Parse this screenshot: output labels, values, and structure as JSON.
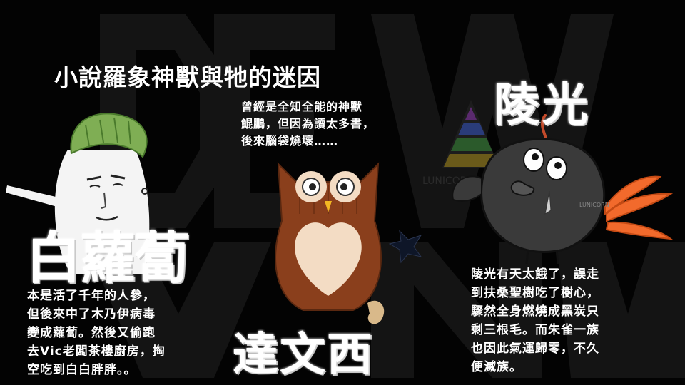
{
  "title": "小說羅象神獸與牠的迷因",
  "characters": {
    "radish": {
      "name": "白蘿蔔",
      "desc_lines": [
        "本是活了千年的人參，",
        "但後來中了木乃伊病毒",
        "變成蘿蔔。然後又偷跑",
        "去Vic老闆茶樓廚房，掏",
        "空吃到白白胖胖。。"
      ]
    },
    "owl": {
      "name": "達文西",
      "desc_lines": [
        "曾經是全知全能的神獸",
        "鯤鵬，但因為讀太多書，",
        "後來腦袋燒壞……"
      ]
    },
    "crow": {
      "name": "陵光",
      "desc_lines": [
        "陵光有天太餓了，誤走",
        "到扶桑聖樹吃了樹心，",
        "驟然全身燃燒成黑炭只",
        "剩三根毛。而朱雀一族",
        "也因此氣運歸零，不久",
        "便滅族。"
      ]
    }
  },
  "colors": {
    "background": "#030303",
    "text": "#ffffff",
    "owl_brown": "#8a3f1c",
    "owl_chest": "#f3dcc4",
    "radish_leaf": "#7fae54",
    "crow_body": "#3a3a3a",
    "fire": "#f26a2c"
  }
}
